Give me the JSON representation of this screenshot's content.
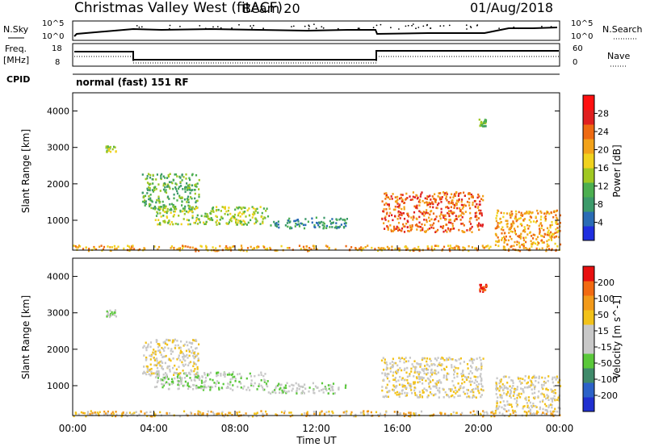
{
  "header": {
    "station": "Christmas Valley West (fitACF)",
    "beam": "Beam 20",
    "date": "01/Aug/2018"
  },
  "top_panels": {
    "nsky_label": "N.Sky",
    "nsearch_label": "N.Search",
    "freq_label_1": "Freq.",
    "freq_label_2": "[MHz]",
    "nave_label": "Nave",
    "cpid_label": "CPID",
    "cpid_value": "normal (fast) 151 RF",
    "noise_ticks_left": [
      "10^5",
      "10^0"
    ],
    "noise_ticks_right": [
      "10^5",
      "10^0"
    ],
    "freq_ticks": [
      "18",
      "8"
    ],
    "nave_ticks": [
      "60",
      "0"
    ]
  },
  "colors": {
    "power_scale": [
      "#1f2fe0",
      "#2a6cb5",
      "#3c9a6a",
      "#4caf50",
      "#a0c822",
      "#f0d21e",
      "#f2a21a",
      "#ee6a12",
      "#e02020",
      "#ff1010"
    ],
    "velocity_scale": [
      "#2030d0",
      "#2c62c8",
      "#3f8a6a",
      "#5ac83a",
      "#c8c8c8",
      "#c8c8c8",
      "#f2c21a",
      "#f29a1a",
      "#f26a12",
      "#e81010"
    ]
  },
  "chart_data": [
    {
      "type": "heatmap",
      "panel": "power",
      "xlabel": "Time UT",
      "ylabel": "Slant Range [km]",
      "colorbar_label": "Power [dB]",
      "colorbar_ticks": [
        "28",
        "24",
        "20",
        "16",
        "12",
        "8",
        "4"
      ],
      "x_ticks": [
        "00:00",
        "04:00",
        "08:00",
        "12:00",
        "16:00",
        "20:00",
        "00:00"
      ],
      "y_ticks": [
        "4000",
        "3000",
        "2000",
        "1000"
      ],
      "xlim_hours": [
        0,
        24
      ],
      "ylim_km": [
        180,
        4500
      ],
      "regions": [
        {
          "t0": 0.0,
          "t1": 24.0,
          "r0": 180,
          "r1": 330,
          "level": 6
        },
        {
          "t0": 3.4,
          "t1": 6.2,
          "r0": 1300,
          "r1": 2300,
          "level": 3
        },
        {
          "t0": 4.0,
          "t1": 9.6,
          "r0": 900,
          "r1": 1400,
          "level": 4
        },
        {
          "t0": 9.6,
          "t1": 13.5,
          "r0": 800,
          "r1": 1100,
          "level": 2
        },
        {
          "t0": 15.2,
          "t1": 20.2,
          "r0": 700,
          "r1": 1800,
          "level": 7
        },
        {
          "t0": 20.8,
          "t1": 24.0,
          "r0": 300,
          "r1": 1300,
          "level": 6
        },
        {
          "t0": 1.6,
          "t1": 2.1,
          "r0": 2900,
          "r1": 3100,
          "level": 4
        },
        {
          "t0": 20.0,
          "t1": 20.4,
          "r0": 3600,
          "r1": 3800,
          "level": 3
        }
      ]
    },
    {
      "type": "heatmap",
      "panel": "velocity",
      "xlabel": "Time UT",
      "ylabel": "Slant Range [km]",
      "colorbar_label": "Velocity [m s^-1]",
      "colorbar_ticks": [
        "200",
        "100",
        "50",
        "15",
        "-15",
        "-50",
        "-100",
        "-200"
      ],
      "x_ticks": [
        "00:00",
        "04:00",
        "08:00",
        "12:00",
        "16:00",
        "20:00",
        "00:00"
      ],
      "y_ticks": [
        "4000",
        "3000",
        "2000",
        "1000"
      ],
      "xlim_hours": [
        0,
        24
      ],
      "ylim_km": [
        180,
        4500
      ],
      "regions": [
        {
          "t0": 0.0,
          "t1": 24.0,
          "r0": 180,
          "r1": 330,
          "level": 6
        },
        {
          "t0": 3.4,
          "t1": 6.2,
          "r0": 1300,
          "r1": 2300,
          "level": 5
        },
        {
          "t0": 4.0,
          "t1": 9.6,
          "r0": 900,
          "r1": 1400,
          "level": 4
        },
        {
          "t0": 9.6,
          "t1": 13.5,
          "r0": 800,
          "r1": 1100,
          "level": 4
        },
        {
          "t0": 15.2,
          "t1": 20.2,
          "r0": 700,
          "r1": 1800,
          "level": 5
        },
        {
          "t0": 20.8,
          "t1": 24.0,
          "r0": 300,
          "r1": 1300,
          "level": 5
        },
        {
          "t0": 1.6,
          "t1": 2.1,
          "r0": 2900,
          "r1": 3100,
          "level": 4
        },
        {
          "t0": 20.0,
          "t1": 20.4,
          "r0": 3600,
          "r1": 3800,
          "level": 9
        }
      ]
    }
  ]
}
